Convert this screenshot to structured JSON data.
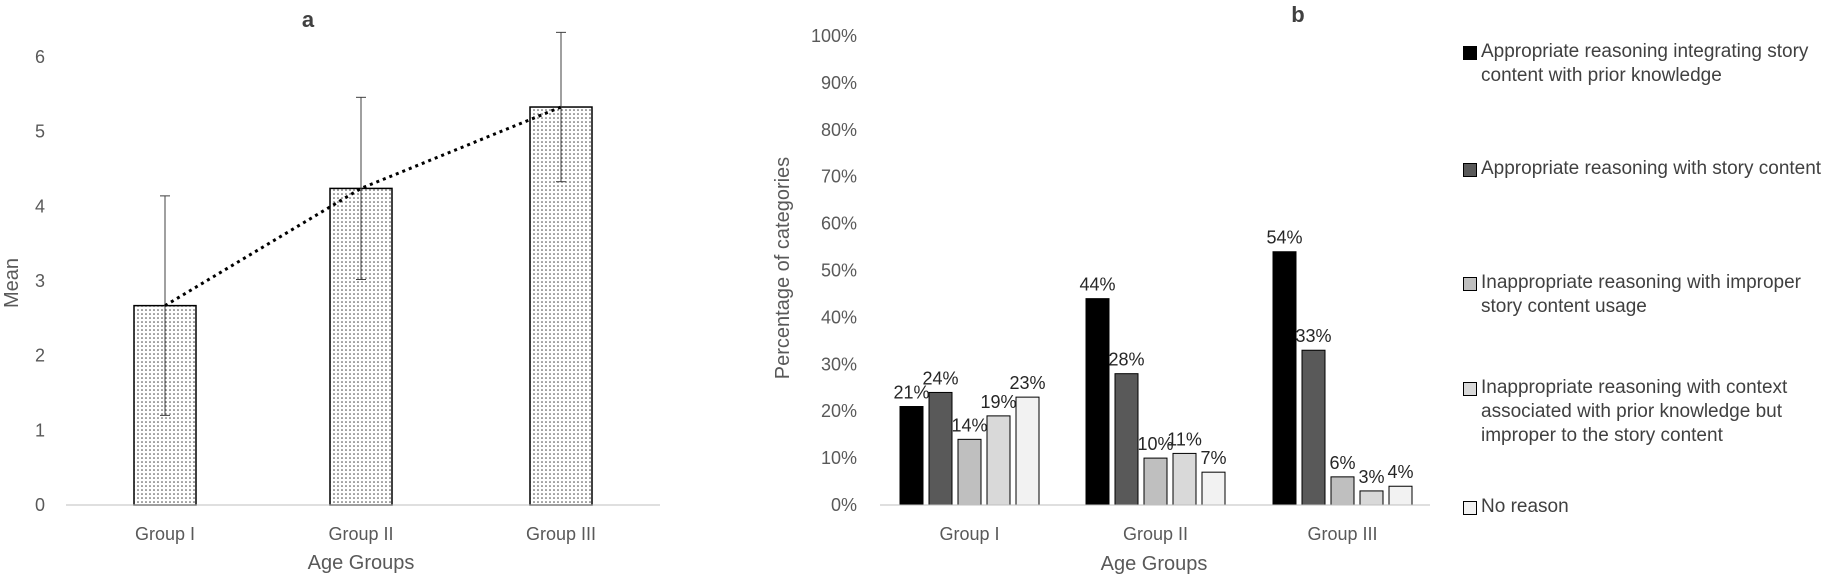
{
  "chart_data": [
    {
      "type": "bar",
      "title": "a",
      "xlabel": "Age Groups",
      "ylabel": "Mean",
      "categories": [
        "Group I",
        "Group II",
        "Group III"
      ],
      "values": [
        2.67,
        4.24,
        5.33
      ],
      "error_bars": [
        1.47,
        1.22,
        1.0
      ],
      "ylim": [
        0,
        6
      ],
      "yticks": [
        "0",
        "1",
        "2",
        "3",
        "4",
        "5",
        "6"
      ],
      "trendline": "dotted linear",
      "bar_pattern": "dotted",
      "grid": false
    },
    {
      "type": "bar",
      "title": "b",
      "xlabel": "Age Groups",
      "ylabel": "Percentage of categories",
      "categories": [
        "Group I",
        "Group II",
        "Group III"
      ],
      "ylim": [
        0,
        100
      ],
      "yticks": [
        "0%",
        "10%",
        "20%",
        "30%",
        "40%",
        "50%",
        "60%",
        "70%",
        "80%",
        "90%",
        "100%"
      ],
      "legend_position": "right",
      "grid": false,
      "series": [
        {
          "name": "Appropriate reasoning integrating story content with prior knowledge",
          "values": [
            21,
            44,
            54
          ],
          "labels": [
            "21%",
            "44%",
            "54%"
          ],
          "color": "#000000"
        },
        {
          "name": "Appropriate reasoning with story content",
          "values": [
            24,
            28,
            33
          ],
          "labels": [
            "24%",
            "28%",
            "33%"
          ],
          "color": "#595959"
        },
        {
          "name": "Inappropriate reasoning with improper story content usage",
          "values": [
            14,
            10,
            6
          ],
          "labels": [
            "14%",
            "10%",
            "6%"
          ],
          "color": "#bfbfbf"
        },
        {
          "name": "Inappropriate reasoning with context associated with prior knowledge but improper to the story content",
          "values": [
            19,
            11,
            3
          ],
          "labels": [
            "19%",
            "11%",
            "3%"
          ],
          "color": "#d9d9d9"
        },
        {
          "name": "No reason",
          "values": [
            23,
            7,
            4
          ],
          "labels": [
            "23%",
            "7%",
            "4%"
          ],
          "color": "#f2f2f2"
        }
      ]
    }
  ]
}
